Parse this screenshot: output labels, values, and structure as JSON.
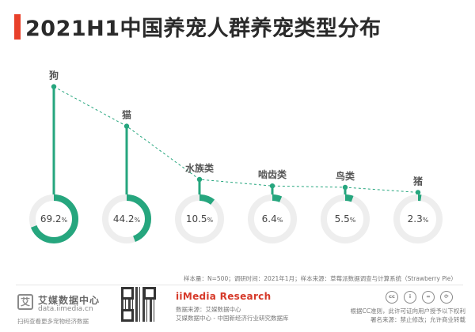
{
  "title": "2021H1中国养宠人群养宠类型分布",
  "chart_data": {
    "type": "donut",
    "title": "2021H1中国养宠人群养宠类型分布",
    "unit": "%",
    "categories": [
      "狗",
      "猫",
      "水族类",
      "啮齿类",
      "鸟类",
      "猪"
    ],
    "values": [
      69.2,
      44.2,
      10.5,
      6.4,
      5.5,
      2.3
    ],
    "value_labels": [
      "69.2",
      "44.2",
      "10.5",
      "6.4",
      "5.5",
      "2.3"
    ],
    "ylim": [
      0,
      100
    ],
    "color": "#26a67e",
    "track_color": "#eeeeee",
    "trend_line": "dashed"
  },
  "sample_note": "样本量：N=500；调研时间：2021年1月；样本来源：草莓派数据调查与计算系统（Strawberry Pie）",
  "footer": {
    "logo_glyph": "艾",
    "logo_name": "艾媒数据中心",
    "logo_url": "data.iimedia.cn",
    "logo_slogan": "扫码查看更多宠物经济数据",
    "brand": "iiMedia Research",
    "source_line1": "数据来源：艾媒数据中心",
    "source_line2": "艾媒数据中心 - 中国新经济行业研究数据库",
    "cc_icons": [
      "cc-icon",
      "attribution-icon",
      "no-derivatives-icon",
      "sharealike-icon"
    ],
    "cc_labels": [
      "cc",
      "i",
      "=",
      "⟳"
    ],
    "license_line1": "根据CC准则，此许可证向用户授予以下权利",
    "license_line2": "署名来源：禁止修改；允许商业转载"
  }
}
